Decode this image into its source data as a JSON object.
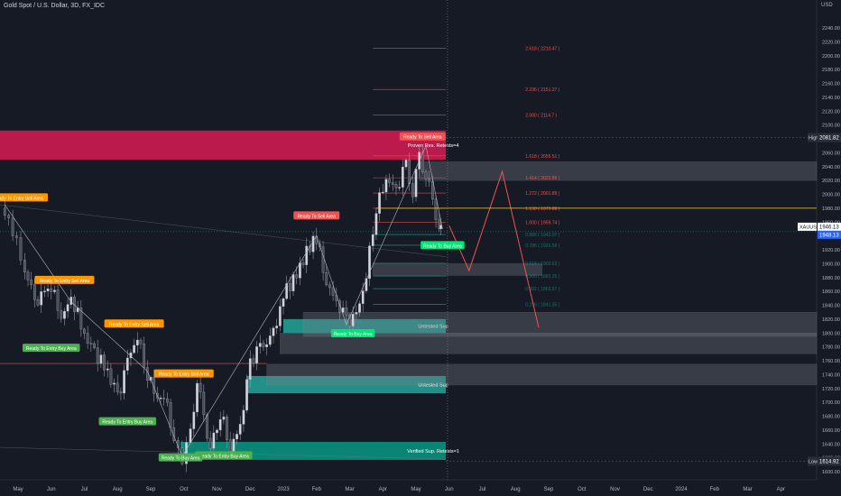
{
  "header": {
    "title": "Gold Spot / U.S. Dollar, 3D, FX_IDC",
    "unit": "USD"
  },
  "chart_data": {
    "type": "candlestick",
    "title": "Gold Spot / U.S. Dollar, 3D, FX_IDC",
    "ylim": [
      1600,
      2280
    ],
    "y_ticks": [
      1600,
      1620,
      1640,
      1660,
      1680,
      1700,
      1720,
      1740,
      1760,
      1780,
      1800,
      1820,
      1840,
      1860,
      1880,
      1900,
      1920,
      1940,
      1960,
      1980,
      2000,
      2020,
      2040,
      2060,
      2080,
      2100,
      2120,
      2140,
      2160,
      2180,
      2200,
      2220,
      2240
    ],
    "x_ticks": [
      {
        "label": "May",
        "t": 0
      },
      {
        "label": "Jun",
        "t": 1
      },
      {
        "label": "Jul",
        "t": 2
      },
      {
        "label": "Aug",
        "t": 3
      },
      {
        "label": "Sep",
        "t": 4
      },
      {
        "label": "Oct",
        "t": 5
      },
      {
        "label": "Nov",
        "t": 6
      },
      {
        "label": "Dec",
        "t": 7
      },
      {
        "label": "2023",
        "t": 8
      },
      {
        "label": "Feb",
        "t": 9
      },
      {
        "label": "Mar",
        "t": 10
      },
      {
        "label": "Apr",
        "t": 11
      },
      {
        "label": "May",
        "t": 12
      },
      {
        "label": "Jun",
        "t": 13
      },
      {
        "label": "Jul",
        "t": 14
      },
      {
        "label": "Aug",
        "t": 15
      },
      {
        "label": "Sep",
        "t": 16
      },
      {
        "label": "Oct",
        "t": 17
      },
      {
        "label": "Nov",
        "t": 18
      },
      {
        "label": "Dec",
        "t": 19
      },
      {
        "label": "2024",
        "t": 20
      },
      {
        "label": "Feb",
        "t": 21
      },
      {
        "label": "Mar",
        "t": 22
      },
      {
        "label": "Apr",
        "t": 23
      },
      {
        "label": "May",
        "t": 24
      }
    ],
    "price_path": [
      [
        -0.4,
        1980
      ],
      [
        0.2,
        1890
      ],
      [
        0.6,
        1850
      ],
      [
        1.0,
        1865
      ],
      [
        1.3,
        1830
      ],
      [
        1.6,
        1845
      ],
      [
        2.0,
        1800
      ],
      [
        2.3,
        1775
      ],
      [
        2.7,
        1740
      ],
      [
        3.0,
        1710
      ],
      [
        3.3,
        1760
      ],
      [
        3.6,
        1790
      ],
      [
        3.9,
        1745
      ],
      [
        4.2,
        1710
      ],
      [
        4.5,
        1690
      ],
      [
        4.7,
        1650
      ],
      [
        4.95,
        1622
      ],
      [
        5.2,
        1650
      ],
      [
        5.4,
        1730
      ],
      [
        5.6,
        1680
      ],
      [
        5.8,
        1640
      ],
      [
        6.1,
        1680
      ],
      [
        6.4,
        1635
      ],
      [
        6.7,
        1670
      ],
      [
        7.0,
        1750
      ],
      [
        7.3,
        1780
      ],
      [
        7.7,
        1800
      ],
      [
        8.1,
        1860
      ],
      [
        8.5,
        1900
      ],
      [
        9.0,
        1935
      ],
      [
        9.3,
        1880
      ],
      [
        9.6,
        1840
      ],
      [
        9.9,
        1815
      ],
      [
        10.2,
        1830
      ],
      [
        10.5,
        1880
      ],
      [
        10.8,
        1980
      ],
      [
        11.1,
        2030
      ],
      [
        11.4,
        2000
      ],
      [
        11.7,
        2040
      ],
      [
        11.9,
        2010
      ],
      [
        12.1,
        2055
      ],
      [
        12.3,
        2025
      ],
      [
        12.5,
        1985
      ],
      [
        12.7,
        1955
      ],
      [
        12.8,
        1946
      ]
    ],
    "last_price": 1946.13,
    "last_price_label": "XAUUSD",
    "current_price": 1948.13,
    "high": {
      "label": "High",
      "value": 2081.82
    },
    "low": {
      "label": "Low",
      "value": 1614.92
    },
    "fib_levels": [
      {
        "label": "2.618 ( 2210.47 )",
        "value": 2210.47
      },
      {
        "label": "2.236 ( 2151.27 )",
        "value": 2151.27
      },
      {
        "label": "2.000 ( 2114.7 )",
        "value": 2114.7
      },
      {
        "label": "1.618 ( 2055.51 )",
        "value": 2055.51
      },
      {
        "label": "1.414 ( 2023.89 )",
        "value": 2023.89
      },
      {
        "label": "1.272 ( 2001.89 )",
        "value": 2001.89
      },
      {
        "label": "1.130 ( 1979.88 )",
        "value": 1979.88
      },
      {
        "label": "1.000 ( 1959.74 )",
        "value": 1959.74
      },
      {
        "label": "0.886 ( 1942.07 )",
        "value": 1942.07
      },
      {
        "label": "0.786 ( 1926.58 )",
        "value": 1926.58
      },
      {
        "label": "0.618 ( 1900.53 )",
        "value": 1900.53
      },
      {
        "label": "0.500 ( 1882.25 )",
        "value": 1882.25
      },
      {
        "label": "0.382 ( 1863.97 )",
        "value": 1863.97
      },
      {
        "label": "0.236 ( 1841.35 )",
        "value": 1841.35
      }
    ],
    "zones": [
      {
        "label": "Proven Res. Retests=4",
        "from": 2050,
        "to": 2092,
        "color": "#d81b55"
      },
      {
        "label": "Untested Sup",
        "from": 1800,
        "to": 1820,
        "color": "#26a69a"
      },
      {
        "label": "Untested Sup",
        "from": 1713,
        "to": 1738,
        "color": "#26a69a"
      },
      {
        "label": "Verified Sup. Retests=1",
        "from": 1617,
        "to": 1643,
        "color": "#089981"
      }
    ],
    "tags": [
      {
        "text": "Ready To Entry Sell Area",
        "t": 0.0,
        "y": 1995,
        "color": "#ff9800"
      },
      {
        "text": "Ready To Entry Sell Area",
        "t": 1.4,
        "y": 1876,
        "color": "#ff9800"
      },
      {
        "text": "Ready To Entry Buy Area",
        "t": 1.0,
        "y": 1778,
        "color": "#4caf50"
      },
      {
        "text": "Ready To Entry Sell Area",
        "t": 3.5,
        "y": 1813,
        "color": "#ff9800"
      },
      {
        "text": "Ready To Entry Buy Area",
        "t": 3.3,
        "y": 1672,
        "color": "#4caf50"
      },
      {
        "text": "Ready To Entry Sell Area",
        "t": 5.0,
        "y": 1741,
        "color": "#ff9800"
      },
      {
        "text": "Ready To Entry Buy Area",
        "t": 6.2,
        "y": 1623,
        "color": "#4caf50"
      },
      {
        "text": "Ready To Buy Area",
        "t": 4.9,
        "y": 1620,
        "color": "#4caf50"
      },
      {
        "text": "Ready To Sell Area",
        "t": 9.0,
        "y": 1969,
        "color": "#ef5350"
      },
      {
        "text": "Ready To Buy Area",
        "t": 10.1,
        "y": 1799,
        "color": "#00e676"
      },
      {
        "text": "Ready To Sell Area",
        "t": 12.2,
        "y": 2083,
        "color": "#ef5350"
      },
      {
        "text": "Ready To Buy Area",
        "t": 12.8,
        "y": 1926,
        "color": "#00e676"
      }
    ],
    "projection": [
      [
        13.0,
        1955
      ],
      [
        13.6,
        1890
      ],
      [
        14.6,
        2033
      ],
      [
        15.7,
        1808
      ]
    ],
    "gray_boxes": [
      {
        "t0": 12.1,
        "t1": 24.5,
        "from": 2020,
        "to": 2047
      },
      {
        "t0": 10.7,
        "t1": 15.8,
        "from": 1883,
        "to": 1900
      },
      {
        "t0": 8.6,
        "t1": 24.5,
        "from": 1795,
        "to": 1830
      },
      {
        "t0": 7.9,
        "t1": 24.5,
        "from": 1770,
        "to": 1800
      },
      {
        "t0": 7.5,
        "t1": 24.5,
        "from": 1725,
        "to": 1755
      }
    ]
  }
}
